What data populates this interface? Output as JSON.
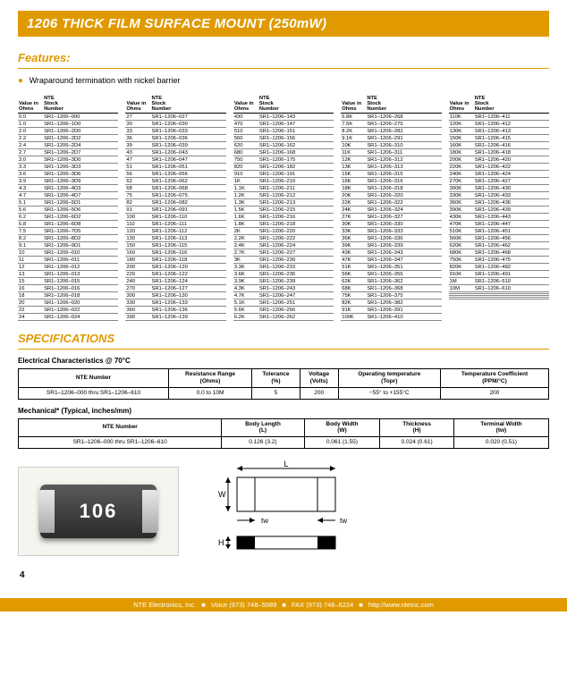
{
  "title": "1206 THICK FILM SURFACE MOUNT (250mW)",
  "features": {
    "heading": "Features:",
    "item": "Wraparound termination with nickel barrier"
  },
  "colHeaders": [
    "Value in\nOhms",
    "NTE\nStock\nNumber"
  ],
  "data": [
    [
      [
        "0.0",
        "SR1–1206–000"
      ],
      [
        "1.0",
        "SR1–1206–1D0"
      ],
      [
        "2.0",
        "SR1–1206–2D0"
      ],
      [
        "2.2",
        "SR1–1206–2D2"
      ],
      [
        "2.4",
        "SR1–1206–2D4"
      ],
      [
        "2.7",
        "SR1–1206–2D7"
      ],
      [
        "3.0",
        "SR1–1206–3D0"
      ],
      [
        "3.3",
        "SR1–1206–3D3"
      ],
      [
        "3.6",
        "SR1–1206–3D6"
      ],
      [
        "3.9",
        "SR1–1206–3D9"
      ],
      [
        "4.3",
        "SR1–1206–4D3"
      ],
      [
        "4.7",
        "SR1–1206–4D7"
      ],
      [
        "5.1",
        "SR1–1206–5D1"
      ],
      [
        "5.6",
        "SR1–1206–5D6"
      ],
      [
        "6.2",
        "SR1–1206–6D2"
      ],
      [
        "6.8",
        "SR1–1206–6D8"
      ],
      [
        "7.5",
        "SR1–1206–7D5"
      ],
      [
        "8.2",
        "SR1–1206–8D2"
      ],
      [
        "9.1",
        "SR1–1206–9D1"
      ],
      [
        "10",
        "SR1–1206–010"
      ],
      [
        "11",
        "SR1–1206–011"
      ],
      [
        "12",
        "SR1–1206–012"
      ],
      [
        "13",
        "SR1–1206–013"
      ],
      [
        "15",
        "SR1–1206–015"
      ],
      [
        "16",
        "SR1–1206–016"
      ],
      [
        "18",
        "SR1–1206–018"
      ],
      [
        "20",
        "SR1–1206–020"
      ],
      [
        "22",
        "SR1–1206–022"
      ],
      [
        "24",
        "SR1–1206–024"
      ]
    ],
    [
      [
        "27",
        "SR1–1206–027"
      ],
      [
        "30",
        "SR1–1206–030"
      ],
      [
        "33",
        "SR1–1206–033"
      ],
      [
        "36",
        "SR1–1206–036"
      ],
      [
        "39",
        "SR1–1206–039"
      ],
      [
        "43",
        "SR1–1206–043"
      ],
      [
        "47",
        "SR1–1206–047"
      ],
      [
        "51",
        "SR1–1206–051"
      ],
      [
        "56",
        "SR1–1206–056"
      ],
      [
        "62",
        "SR1–1206–062"
      ],
      [
        "68",
        "SR1–1206–068"
      ],
      [
        "75",
        "SR1–1206–075"
      ],
      [
        "82",
        "SR1–1206–082"
      ],
      [
        "91",
        "SR1–1206–091"
      ],
      [
        "100",
        "SR1–1206–110"
      ],
      [
        "110",
        "SR1–1206–111"
      ],
      [
        "120",
        "SR1–1206–112"
      ],
      [
        "130",
        "SR1–1206–113"
      ],
      [
        "150",
        "SR1–1206–115"
      ],
      [
        "160",
        "SR1–1206–116"
      ],
      [
        "180",
        "SR1–1206–118"
      ],
      [
        "200",
        "SR1–1206–120"
      ],
      [
        "220",
        "SR1–1206–122"
      ],
      [
        "240",
        "SR1–1206–124"
      ],
      [
        "270",
        "SR1–1206–127"
      ],
      [
        "300",
        "SR1–1206–130"
      ],
      [
        "330",
        "SR1–1206–133"
      ],
      [
        "360",
        "SR1–1206–136"
      ],
      [
        "390",
        "SR1–1206–139"
      ]
    ],
    [
      [
        "430",
        "SR1–1206–143"
      ],
      [
        "470",
        "SR1–1206–147"
      ],
      [
        "510",
        "SR1–1206–151"
      ],
      [
        "560",
        "SR1–1206–156"
      ],
      [
        "620",
        "SR1–1206–162"
      ],
      [
        "680",
        "SR1–1206–168"
      ],
      [
        "750",
        "SR1–1206–175"
      ],
      [
        "820",
        "SR1–1206–182"
      ],
      [
        "910",
        "SR1–1206–191"
      ],
      [
        "1K",
        "SR1–1206–210"
      ],
      [
        "1.1K",
        "SR1–1206–211"
      ],
      [
        "1.2K",
        "SR1–1206–212"
      ],
      [
        "1.3K",
        "SR1–1206–213"
      ],
      [
        "1.5K",
        "SR1–1206–215"
      ],
      [
        "1.6K",
        "SR1–1206–216"
      ],
      [
        "1.8K",
        "SR1–1206–218"
      ],
      [
        "2K",
        "SR1–1206–220"
      ],
      [
        "2.2K",
        "SR1–1206–222"
      ],
      [
        "2.4K",
        "SR1–1206–224"
      ],
      [
        "2.7K",
        "SR1–1206–227"
      ],
      [
        "3K",
        "SR1–1206–230"
      ],
      [
        "3.3K",
        "SR1–1206–233"
      ],
      [
        "3.6K",
        "SR1–1206–236"
      ],
      [
        "3.9K",
        "SR1–1206–239"
      ],
      [
        "4.3K",
        "SR1–1206–243"
      ],
      [
        "4.7K",
        "SR1–1206–247"
      ],
      [
        "5.1K",
        "SR1–1206–251"
      ],
      [
        "5.6K",
        "SR1–1206–256"
      ],
      [
        "6.2K",
        "SR1–1206–262"
      ]
    ],
    [
      [
        "6.8K",
        "SR1–1206–268"
      ],
      [
        "7.5K",
        "SR1–1206–275"
      ],
      [
        "8.2K",
        "SR1–1206–282"
      ],
      [
        "9.1K",
        "SR1–1206–291"
      ],
      [
        "10K",
        "SR1–1206–310"
      ],
      [
        "11K",
        "SR1–1206–311"
      ],
      [
        "12K",
        "SR1–1206–312"
      ],
      [
        "13K",
        "SR1–1206–313"
      ],
      [
        "15K",
        "SR1–1206–315"
      ],
      [
        "16K",
        "SR1–1206–316"
      ],
      [
        "18K",
        "SR1–1206–318"
      ],
      [
        "20K",
        "SR1–1206–320"
      ],
      [
        "22K",
        "SR1–1206–322"
      ],
      [
        "24K",
        "SR1–1206–324"
      ],
      [
        "27K",
        "SR1–1206–327"
      ],
      [
        "30K",
        "SR1–1206–330"
      ],
      [
        "33K",
        "SR1–1206–333"
      ],
      [
        "36K",
        "SR1–1206–336"
      ],
      [
        "39K",
        "SR1–1206–339"
      ],
      [
        "43K",
        "SR1–1206–343"
      ],
      [
        "47K",
        "SR1–1206–347"
      ],
      [
        "51K",
        "SR1–1206–351"
      ],
      [
        "56K",
        "SR1–1206–356"
      ],
      [
        "62K",
        "SR1–1206–362"
      ],
      [
        "68K",
        "SR1–1206–368"
      ],
      [
        "75K",
        "SR1–1206–375"
      ],
      [
        "82K",
        "SR1–1206–382"
      ],
      [
        "91K",
        "SR1–1206–391"
      ],
      [
        "100K",
        "SR1–1206–410"
      ]
    ],
    [
      [
        "110K",
        "SR1–1206–411"
      ],
      [
        "120K",
        "SR1–1206–412"
      ],
      [
        "130K",
        "SR1–1206–413"
      ],
      [
        "150K",
        "SR1–1206–415"
      ],
      [
        "160K",
        "SR1–1206–416"
      ],
      [
        "180K",
        "SR1–1206–418"
      ],
      [
        "200K",
        "SR1–1206–420"
      ],
      [
        "220K",
        "SR1–1206–422"
      ],
      [
        "240K",
        "SR1–1206–424"
      ],
      [
        "270K",
        "SR1–1206–427"
      ],
      [
        "300K",
        "SR1–1206–430"
      ],
      [
        "330K",
        "SR1–1206–433"
      ],
      [
        "360K",
        "SR1–1206–436"
      ],
      [
        "390K",
        "SR1–1206–439"
      ],
      [
        "430K",
        "SR1–1206–443"
      ],
      [
        "470K",
        "SR1–1206–447"
      ],
      [
        "510K",
        "SR1–1206–451"
      ],
      [
        "560K",
        "SR1–1206–456"
      ],
      [
        "620K",
        "SR1–1206–462"
      ],
      [
        "680K",
        "SR1–1206–468"
      ],
      [
        "750K",
        "SR1–1206–475"
      ],
      [
        "820K",
        "SR1–1206–482"
      ],
      [
        "910K",
        "SR1–1206–491"
      ],
      [
        "1M",
        "SR1–1206–510"
      ],
      [
        "10M",
        "SR1–1206–610"
      ],
      [
        "",
        ""
      ],
      [
        "",
        ""
      ],
      [
        "",
        ""
      ],
      [
        "",
        ""
      ]
    ]
  ],
  "specs": {
    "heading": "SPECIFICATIONS",
    "elec": {
      "sub": "Electrical Characteristics @ 70°C",
      "headers": [
        "NTE Number",
        "Resistance Range\n(Ohms)",
        "Tolerance\n(%)",
        "Voltage\n(Volts)",
        "Operating temperature\n(Topr)",
        "Temperature Coefficient\n(PPM/°C)"
      ],
      "row": [
        "SR1–1206–000 thru SR1–1206–610",
        "0.0 to 10M",
        "5",
        "200",
        "−55° to +155°C",
        "200"
      ]
    },
    "mech": {
      "sub": "Mechanical* (Typical, inches/mm)",
      "headers": [
        "NTE Number",
        "Body Length\n(L)",
        "Body Width\n(W)",
        "Thickness\n(H)",
        "Terminal Width\n(tw)"
      ],
      "row": [
        "SR1–1206–000 thru SR1–1206–610",
        "0.126 (3.2)",
        "0.061 (1.55)",
        "0.024 (0.61)",
        "0.020 (0.51)"
      ]
    }
  },
  "resistorLabel": "106",
  "diagram": {
    "L": "L",
    "W": "W",
    "H": "H",
    "tw": "tw"
  },
  "pageNumber": "4",
  "footer": {
    "company": "NTE Electronics, Inc.",
    "voice": "Voice (973) 748–5089",
    "fax": "FAX (973) 748–6224",
    "url": "http://www.nteinc.com"
  },
  "colors": {
    "accent": "#e09a00"
  }
}
